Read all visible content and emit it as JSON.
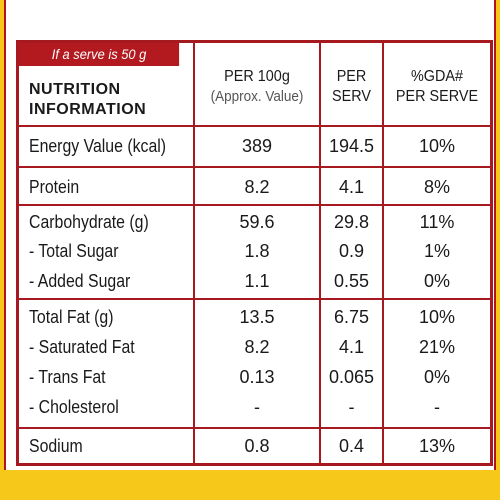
{
  "serve_note": "If a serve is 50 g",
  "header": {
    "title_line1": "NUTRITION",
    "title_line2": "INFORMATION",
    "per100_line1": "PER 100g",
    "per100_line2": "(Approx. Value)",
    "perserv_line1": "PER",
    "perserv_line2": "SERV",
    "gda_line1": "%GDA#",
    "gda_line2": "PER SERVE"
  },
  "rows": [
    {
      "label": "Energy Value (kcal)",
      "per100": "389",
      "serv": "194.5",
      "gda": "10%"
    },
    {
      "label": "Protein",
      "per100": "8.2",
      "serv": "4.1",
      "gda": "8%"
    },
    {
      "label": "Carbohydrate (g)",
      "per100": "59.6",
      "serv": "29.8",
      "gda": "11%"
    },
    {
      "label": "- Total Sugar",
      "per100": "1.8",
      "serv": "0.9",
      "gda": "1%"
    },
    {
      "label": "- Added Sugar",
      "per100": "1.1",
      "serv": "0.55",
      "gda": "0%"
    },
    {
      "label": "Total Fat (g)",
      "per100": "13.5",
      "serv": "6.75",
      "gda": "10%"
    },
    {
      "label": "- Saturated Fat",
      "per100": "8.2",
      "serv": "4.1",
      "gda": "21%"
    },
    {
      "label": "- Trans Fat",
      "per100": "0.13",
      "serv": "0.065",
      "gda": "0%"
    },
    {
      "label": "- Cholesterol",
      "per100": "-",
      "serv": "-",
      "gda": "-"
    },
    {
      "label": "Sodium",
      "per100": "0.8",
      "serv": "0.4",
      "gda": "13%"
    }
  ],
  "colors": {
    "border": "#a61a1f",
    "banner": "#b21a1f",
    "background": "#f6c81a"
  }
}
